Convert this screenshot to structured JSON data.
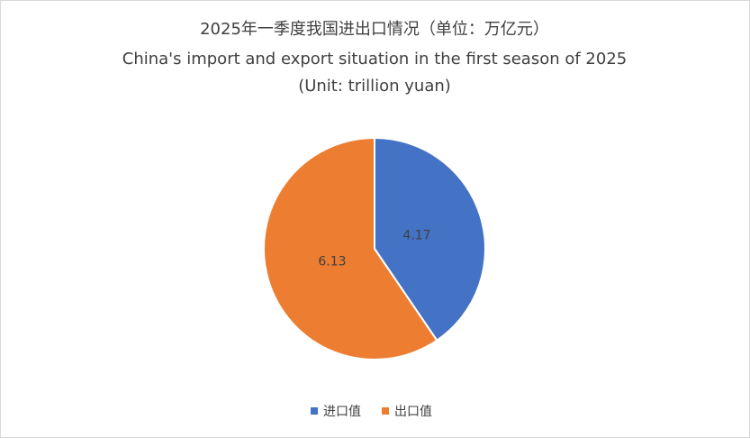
{
  "chart_data": {
    "type": "pie",
    "title": [
      "2025年一季度我国进出口情况（单位：万亿元）",
      "China's import and export situation in the first season of 2025",
      "(Unit: trillion yuan)"
    ],
    "categories": [
      "进口值",
      "出口值"
    ],
    "values": [
      4.17,
      6.13
    ],
    "colors": [
      "#4472c4",
      "#ed7d31"
    ],
    "legend": "bottom"
  }
}
